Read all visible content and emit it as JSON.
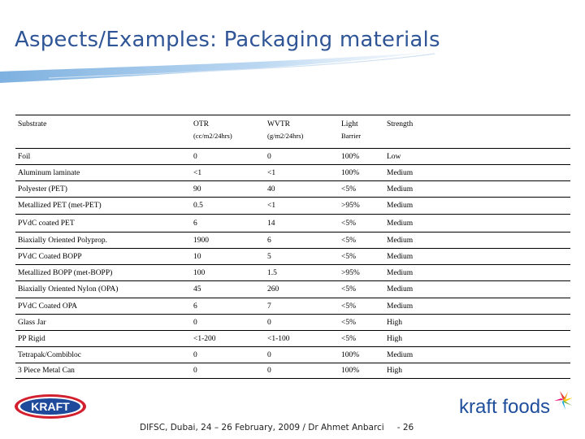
{
  "title": "Aspects/Examples: Packaging materials",
  "table": {
    "headers": [
      {
        "main": "Substrate",
        "sub": ""
      },
      {
        "main": "OTR",
        "sub": "(cc/m2/24hrs)"
      },
      {
        "main": "WVTR",
        "sub": "(g/m2/24hrs)"
      },
      {
        "main": "Light",
        "sub": "Barrier"
      },
      {
        "main": "Strength",
        "sub": ""
      }
    ],
    "rows": [
      [
        "Foil",
        "0",
        "0",
        "100%",
        "Low"
      ],
      [
        "Aluminum laminate",
        "<1",
        "<1",
        "100%",
        "Medium"
      ],
      [
        "Polyester (PET)",
        "90",
        "40",
        "<5%",
        "Medium"
      ],
      [
        "Metallized PET (met-PET)",
        "0.5",
        "<1",
        ">95%",
        "Medium"
      ],
      [
        "PVdC coated PET",
        "6",
        "14",
        "<5%",
        "Medium"
      ],
      [
        "Biaxially Oriented Polyprop.",
        "1900",
        "6",
        "<5%",
        "Medium"
      ],
      [
        "PVdC Coated BOPP",
        "10",
        "5",
        "<5%",
        "Medium"
      ],
      [
        "Metallized BOPP (met-BOPP)",
        "100",
        "1.5",
        ">95%",
        "Medium"
      ],
      [
        "Biaxially Oriented Nylon (OPA)",
        "45",
        "260",
        "<5%",
        "Medium"
      ],
      [
        "PVdC Coated OPA",
        "6",
        "7",
        "<5%",
        "Medium"
      ],
      [
        "Glass Jar",
        "0",
        "0",
        "<5%",
        "High"
      ],
      [
        "PP Rigid",
        "<1-200",
        "<1-100",
        "<5%",
        "High"
      ],
      [
        "Tetrapak/Combibloc",
        "0",
        "0",
        "100%",
        "Medium"
      ],
      [
        "3 Piece Metal Can",
        "0",
        "0",
        "100%",
        "High"
      ]
    ]
  },
  "logos": {
    "kraft": "KRAFT",
    "kraft_foods": "kraft foods"
  },
  "footer": {
    "text": "DIFSC, Dubai, 24 – 26 February, 2009 / Dr Ahmet Anbarci",
    "page": "-   26"
  },
  "colors": {
    "title": "#2f5597",
    "kraft_red": "#d3202f",
    "kraft_blue": "#1f4a9c",
    "kraft_foods_blue": "#1f4e9c"
  }
}
